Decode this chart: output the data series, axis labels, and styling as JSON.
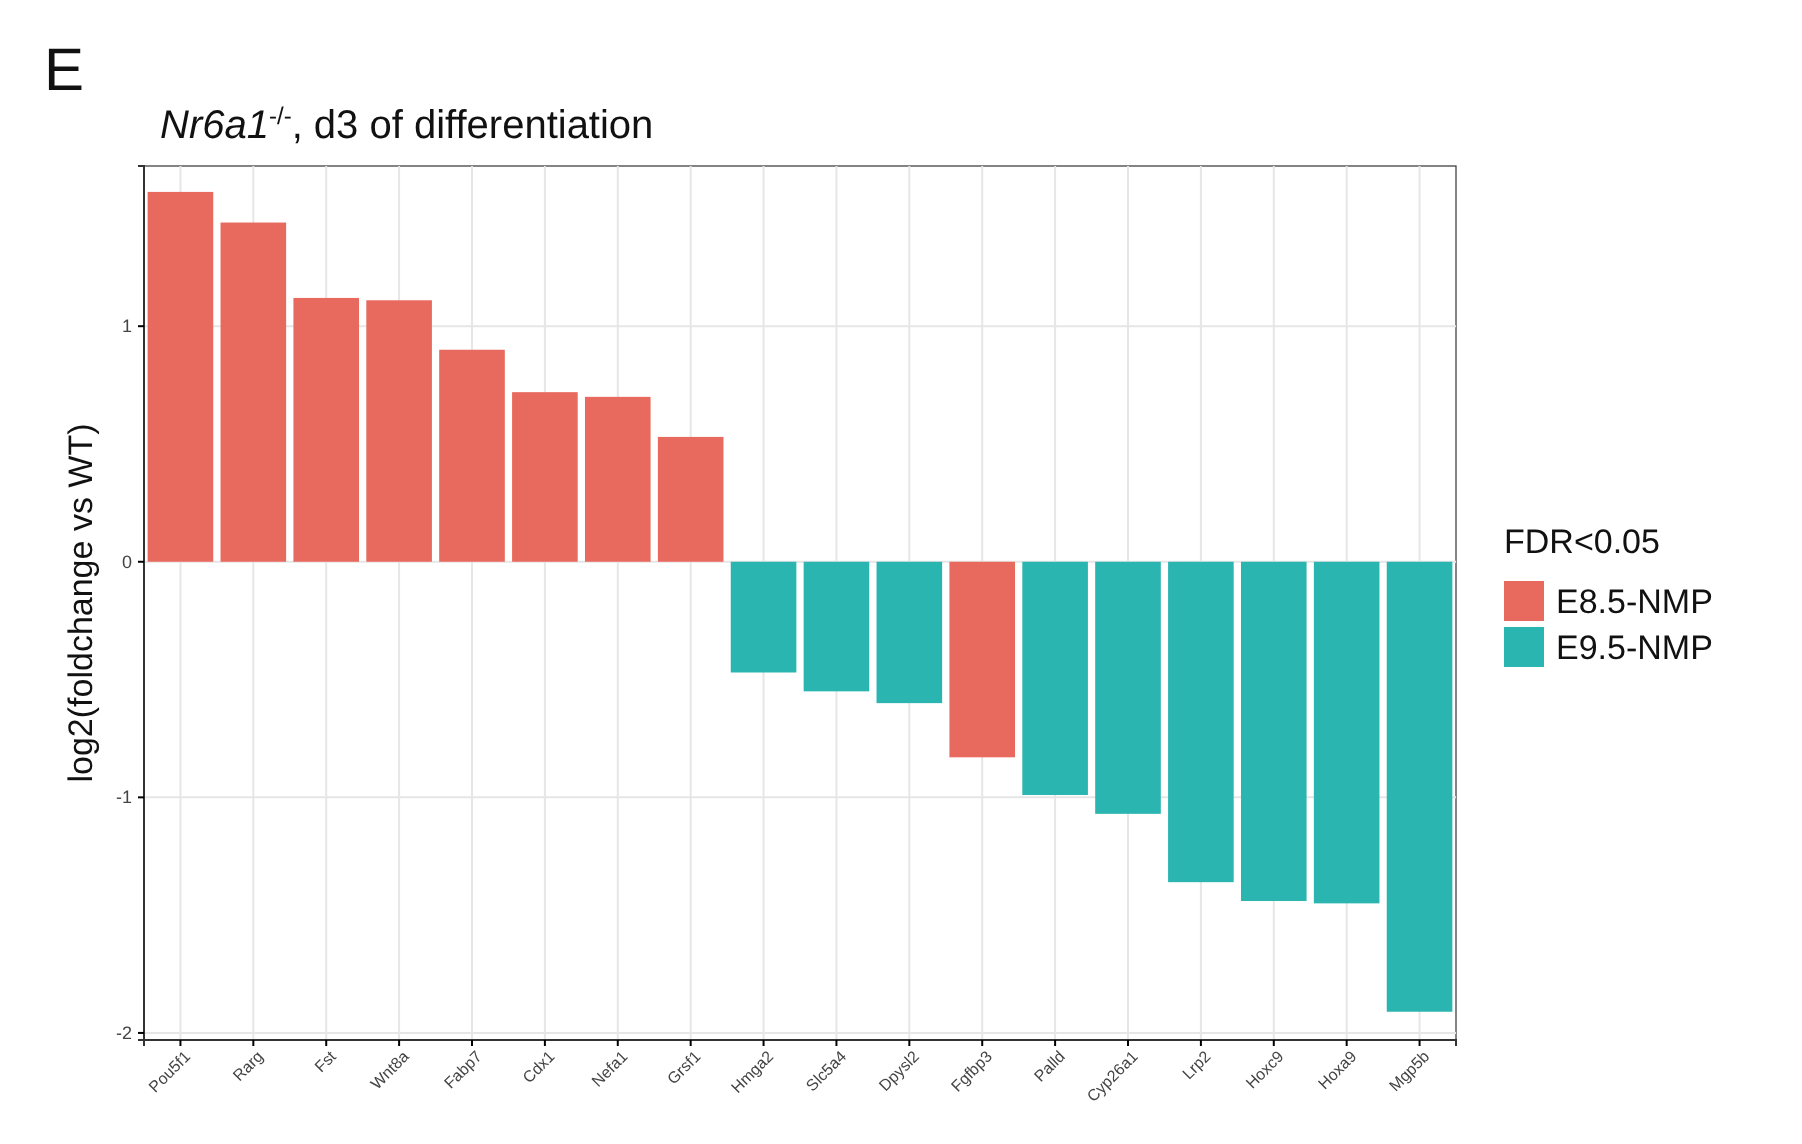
{
  "chart_data": {
    "type": "bar",
    "title": "Nr6a1$^{-/-}$, d3 of differentiation",
    "ylabel": "log2(foldchange vs WT)",
    "legend_title": "FDR<0.05",
    "annotations": [
      "E"
    ],
    "categories": [
      "Pou5f1",
      "Rarg",
      "Fst",
      "Wnt8a",
      "Fabp7",
      "Cdx1",
      "Nefa1",
      "Grsf1",
      "Hmga2",
      "Slc5a4",
      "Dpysl2",
      "Fgfbp3",
      "Palld",
      "Cyp26a1",
      "Lrp2",
      "Hoxc9",
      "Hoxa9",
      "Mgp5b"
    ],
    "series": [
      {
        "name": "E8.5-NMP",
        "color": "#e8695e",
        "values": [
          1.57,
          1.44,
          1.12,
          1.11,
          0.9,
          0.72,
          0.7,
          0.53,
          null,
          null,
          null,
          -0.83,
          null,
          null,
          null,
          null,
          null,
          null
        ]
      },
      {
        "name": "E9.5-NMP",
        "color": "#2bb5b0",
        "values": [
          null,
          null,
          null,
          null,
          null,
          null,
          null,
          null,
          -0.47,
          -0.55,
          -0.6,
          null,
          -0.99,
          -1.07,
          -1.36,
          -1.44,
          -1.45,
          -1.91
        ]
      }
    ],
    "ylim": [
      -2.03,
      1.68
    ],
    "yticks": [
      -2,
      -1,
      0,
      1
    ],
    "grid": true,
    "legend": "right"
  }
}
